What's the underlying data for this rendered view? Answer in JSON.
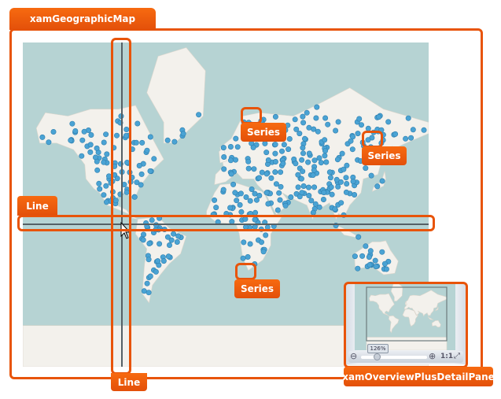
{
  "labels": {
    "map_control": "xamGeographicMap",
    "vertical_line": "Line",
    "horizontal_line": "Line",
    "series_1": "Series",
    "series_2": "Series",
    "series_3": "Series",
    "overview_pane": "xamOverviewPlusDetailPane"
  },
  "overview": {
    "zoom_level": "126%",
    "reset_label": "1:1",
    "icons": [
      "zoom-out-icon",
      "zoom-in-icon",
      "fit-to-screen-icon"
    ]
  },
  "colors": {
    "accent": "#e8540a",
    "ocean": "#b6d3d3",
    "land": "#f3f1ec",
    "marker": "#4aa3d4",
    "crosshair": "#556066"
  }
}
